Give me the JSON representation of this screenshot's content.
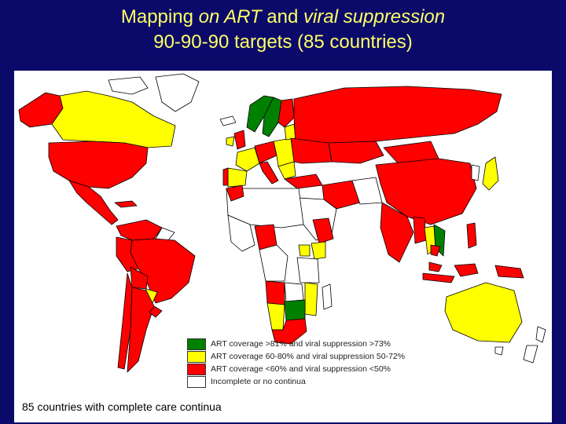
{
  "title": {
    "line1_part1": "Mapping ",
    "line1_em1": "on ART",
    "line1_part2": " and ",
    "line1_em2": "viral suppression",
    "line2": "90-90-90 targets (85 countries)"
  },
  "legend": [
    {
      "label": "ART coverage >81% and viral suppression >73%",
      "color": "#008000"
    },
    {
      "label": "ART coverage 60-80% and viral suppression 50-72%",
      "color": "#ffff00"
    },
    {
      "label": "ART coverage <60% and viral suppression <50%",
      "color": "#ff0000"
    },
    {
      "label": "Incomplete or no continua",
      "color": "#ffffff"
    }
  ],
  "footnote": "85 countries with complete care continua",
  "colors": {
    "background": "#0b0a6b",
    "title": "#ffff66",
    "red": "#ff0000",
    "yellow": "#ffff00",
    "green": "#008000",
    "white": "#ffffff",
    "border": "#000000"
  }
}
